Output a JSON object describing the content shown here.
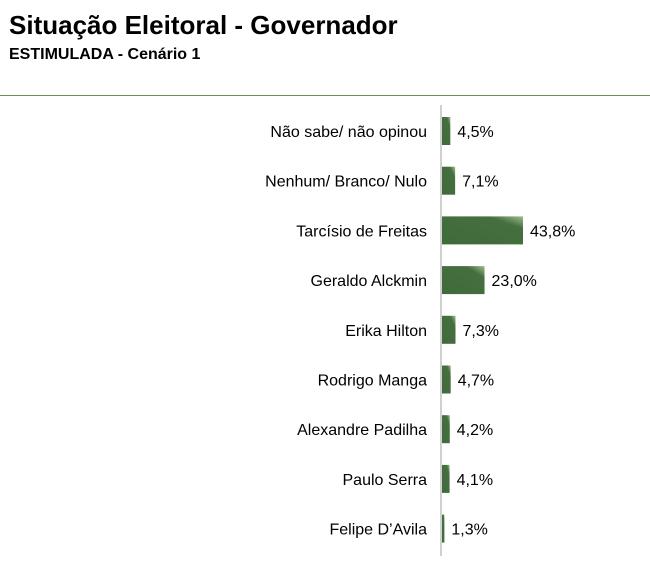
{
  "header": {
    "title": "Situação Eleitoral - Governador",
    "subtitle": "ESTIMULADA - Cenário 1"
  },
  "colors": {
    "bar_dark": "#3f6a3a",
    "bar_light": "#8fb07f",
    "axis": "#a0a0a0",
    "divider": "#6f8f5a"
  },
  "chart_data": {
    "type": "bar",
    "orientation": "horizontal",
    "categories": [
      "Não sabe/ não opinou",
      "Nenhum/ Branco/ Nulo",
      "Tarcísio de Freitas",
      "Geraldo Alckmin",
      "Erika Hilton",
      "Rodrigo Manga",
      "Alexandre Padilha",
      "Paulo Serra",
      "Felipe D’Avila"
    ],
    "values": [
      4.5,
      7.1,
      43.8,
      23.0,
      7.3,
      4.7,
      4.2,
      4.1,
      1.3
    ],
    "value_labels": [
      "4,5%",
      "7,1%",
      "43,8%",
      "23,0%",
      "7,3%",
      "4,7%",
      "4,2%",
      "4,1%",
      "1,3%"
    ],
    "title": "Situação Eleitoral - Governador",
    "subtitle": "ESTIMULADA - Cenário 1",
    "xlabel": "",
    "ylabel": "",
    "grid": false,
    "legend": "none"
  }
}
